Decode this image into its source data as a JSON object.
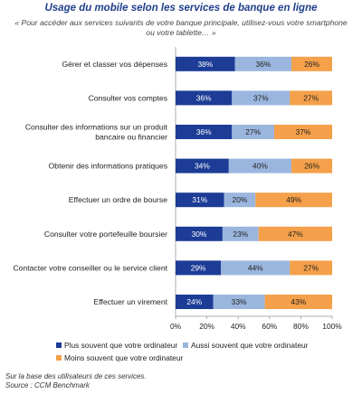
{
  "title": "Usage du mobile selon les services de banque en ligne",
  "subtitle": "« Pour accéder aux services suivants de votre banque principale, utilisez-vous votre smartphone ou votre tablette… »",
  "footnote": {
    "line1": "Sur la base des utilisateurs de ces services.",
    "line2": "Source : CCM Benchmark"
  },
  "chart_data": {
    "type": "bar",
    "orientation": "horizontal",
    "stacked": true,
    "categories": [
      [
        "Gérer et classer vos dépenses"
      ],
      [
        "Consulter vos comptes"
      ],
      [
        "Consulter des informations sur un produit",
        "bancaire ou financier"
      ],
      [
        "Obtenir des informations pratiques"
      ],
      [
        "Effectuer un ordre de bourse"
      ],
      [
        "Consulter votre portefeuille boursier"
      ],
      [
        "Contacter votre conseiller ou le service client"
      ],
      [
        "Effectuer un virement"
      ]
    ],
    "series": [
      {
        "name": "Plus souvent que votre ordinateur",
        "color": "#1c3c96",
        "values": [
          38,
          36,
          36,
          34,
          31,
          30,
          29,
          24
        ],
        "labels": [
          "38%",
          "36%",
          "36%",
          "34%",
          "31%",
          "30%",
          "29%",
          "24%"
        ]
      },
      {
        "name": "Aussi souvent que votre ordinateur",
        "color": "#9bb6de",
        "values": [
          36,
          37,
          27,
          40,
          20,
          23,
          44,
          33
        ],
        "labels": [
          "36%",
          "37%",
          "27%",
          "40%",
          "20%",
          "23%",
          "44%",
          "33%"
        ]
      },
      {
        "name": "Moins souvent que votre ordinateur",
        "color": "#f5a04a",
        "values": [
          26,
          27,
          37,
          26,
          49,
          47,
          27,
          43
        ],
        "labels": [
          "26%",
          "27%",
          "37%",
          "26%",
          "49%",
          "47%",
          "27%",
          "43%"
        ]
      }
    ],
    "xlim": [
      0,
      100
    ],
    "xticks": [
      "0%",
      "20%",
      "40%",
      "60%",
      "80%",
      "100%"
    ],
    "legend_position": "bottom",
    "grid": false
  }
}
